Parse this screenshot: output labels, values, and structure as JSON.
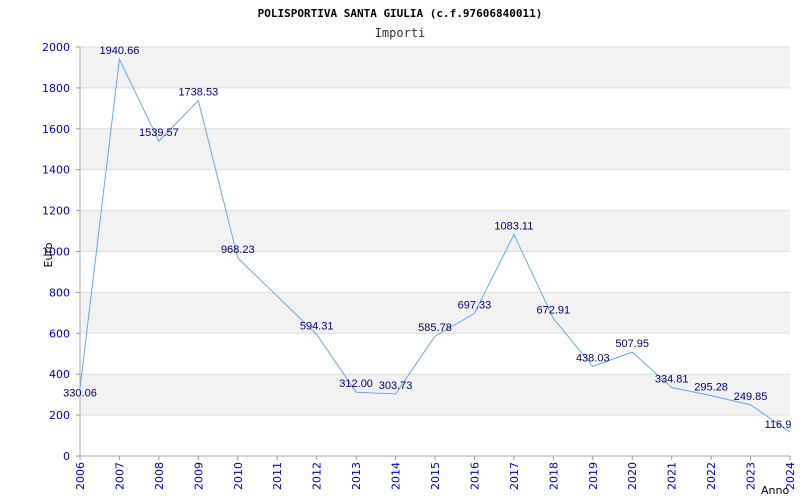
{
  "chart_data": {
    "type": "line",
    "title": "POLISPORTIVA SANTA GIULIA (c.f.97606840011)",
    "subtitle": "Importi",
    "xlabel": "Anno",
    "ylabel": "Euro",
    "ylim": [
      0,
      2000
    ],
    "yticks": [
      "0",
      "200",
      "400",
      "600",
      "800",
      "1000",
      "1200",
      "1400",
      "1600",
      "1800",
      "2000"
    ],
    "categories": [
      "2006",
      "2007",
      "2008",
      "2009",
      "2010",
      "2011",
      "2012",
      "2013",
      "2014",
      "2015",
      "2016",
      "2017",
      "2018",
      "2019",
      "2020",
      "2021",
      "2022",
      "2023",
      "2024"
    ],
    "values": [
      330.06,
      1940.66,
      1539.57,
      1738.53,
      968.23,
      null,
      594.31,
      312.0,
      303.73,
      585.78,
      697.33,
      1083.11,
      672.91,
      438.03,
      507.95,
      334.81,
      295.28,
      249.85,
      116.9
    ],
    "value_labels": [
      "330.06",
      "1940.66",
      "1539.57",
      "1738.53",
      "968.23",
      "",
      "594.31",
      "312.00",
      "303.73",
      "585.78",
      "697.33",
      "1083.11",
      "672.91",
      "438.03",
      "507.95",
      "334.81",
      "295.28",
      "249.85",
      "116.9"
    ],
    "grid": true,
    "line_color": "#66aadd",
    "band_color": "#f2f2f2"
  }
}
